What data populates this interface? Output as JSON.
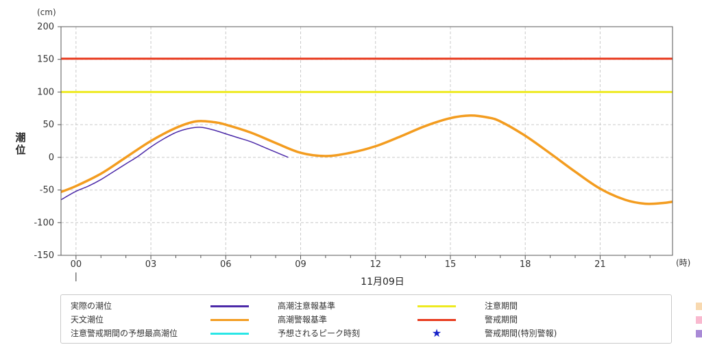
{
  "chart_data": {
    "type": "line",
    "ylabel": "潮位",
    "yunit": "(cm)",
    "xunit": "(時)",
    "date_label": "11月09日",
    "ylim": [
      -150,
      200
    ],
    "yticks": [
      "200",
      "150",
      "100",
      "50",
      "0",
      "-50",
      "-100",
      "-150"
    ],
    "yticks_values": [
      200,
      150,
      100,
      50,
      0,
      -50,
      -100,
      -150
    ],
    "xlim": [
      -0.6,
      23.9
    ],
    "xticks": [
      "00",
      "03",
      "06",
      "09",
      "12",
      "15",
      "18",
      "21"
    ],
    "xticks_values": [
      0,
      3,
      6,
      9,
      12,
      15,
      18,
      21
    ],
    "grid": true,
    "thresholds": [
      {
        "name": "高潮警報基準",
        "value": 151,
        "color": "#e8391c"
      },
      {
        "name": "高潮注意報基準",
        "value": 100,
        "color": "#eeea1f"
      }
    ],
    "series": [
      {
        "name": "天文潮位",
        "color": "#f39c1f",
        "x": [
          -0.6,
          0,
          1,
          2,
          3,
          4,
          4.8,
          5.5,
          6,
          7,
          8,
          9,
          10,
          11,
          12,
          13,
          14,
          15,
          15.8,
          16.5,
          17,
          18,
          19,
          20,
          21,
          22,
          22.8,
          23.5,
          23.9
        ],
        "values": [
          -53,
          -44,
          -25,
          0,
          25,
          45,
          55,
          54,
          50,
          38,
          22,
          7,
          2,
          7,
          17,
          32,
          48,
          60,
          64,
          61,
          55,
          33,
          6,
          -22,
          -48,
          -65,
          -71,
          -70,
          -68
        ]
      },
      {
        "name": "実際の潮位",
        "color": "#4b29a8",
        "x": [
          -0.6,
          0,
          0.5,
          1,
          1.5,
          2,
          2.5,
          3,
          3.5,
          4,
          4.5,
          5,
          5.5,
          6,
          6.5,
          7,
          7.5,
          8,
          8.5
        ],
        "values": [
          -65,
          -52,
          -44,
          -34,
          -22,
          -10,
          2,
          16,
          28,
          38,
          44,
          46,
          42,
          36,
          30,
          24,
          16,
          8,
          0
        ]
      }
    ]
  },
  "legend": [
    {
      "label": "実際の潮位",
      "kind": "line",
      "color": "#4b29a8"
    },
    {
      "label": "高潮注意報基準",
      "kind": "line",
      "color": "#eeea1f"
    },
    {
      "label": "注意期間",
      "kind": "rect",
      "color": "#f8d9b0"
    },
    {
      "label": "天文潮位",
      "kind": "line",
      "color": "#f39c1f"
    },
    {
      "label": "高潮警報基準",
      "kind": "line",
      "color": "#e8391c"
    },
    {
      "label": "警戒期間",
      "kind": "rect",
      "color": "#f9b9cf"
    },
    {
      "label": "注意警戒期間の予想最高潮位",
      "kind": "line",
      "color": "#29e6e6"
    },
    {
      "label": "予想されるピーク時刻",
      "kind": "star",
      "color": "#1520c8",
      "glyph": "★"
    },
    {
      "label": "警戒期間(特別警報)",
      "kind": "rect",
      "color": "#a98ad6"
    }
  ]
}
